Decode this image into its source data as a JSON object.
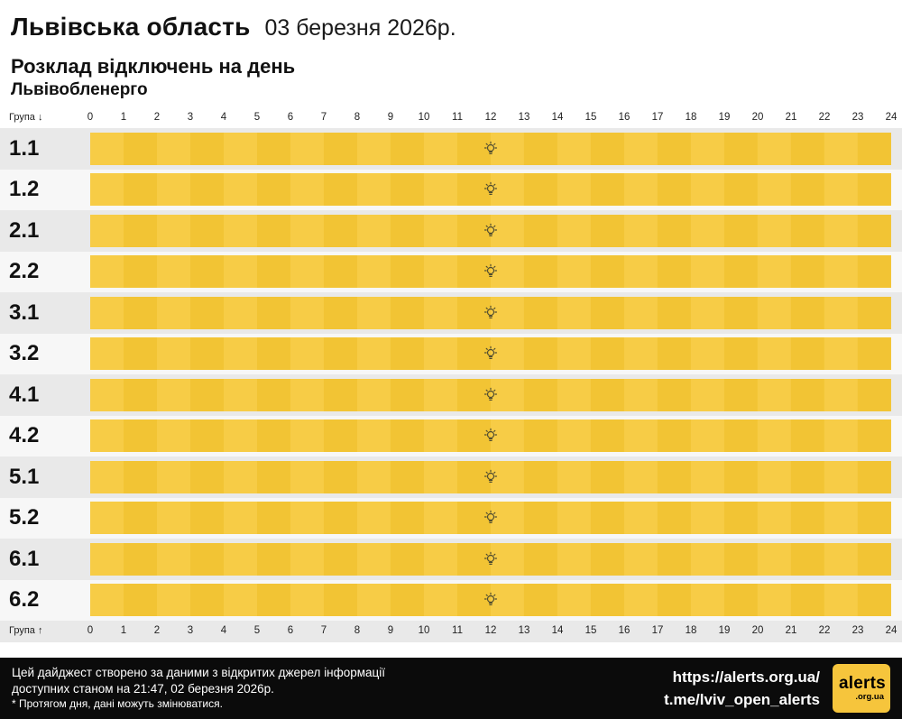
{
  "header": {
    "title": "Львівська область",
    "date": "03 березня 2026р.",
    "subtitle": "Розклад відключень на день",
    "provider": "Львівобленерго"
  },
  "axis": {
    "top_label": "Група ↓",
    "bottom_label": "Група ↑",
    "hours": [
      "0",
      "1",
      "2",
      "3",
      "4",
      "5",
      "6",
      "7",
      "8",
      "9",
      "10",
      "11",
      "12",
      "13",
      "14",
      "15",
      "16",
      "17",
      "18",
      "19",
      "20",
      "21",
      "22",
      "23",
      "24"
    ]
  },
  "chart_data": {
    "type": "heatmap",
    "title": "Розклад відключень на день — Львівобленерго, 03 березня 2026р.",
    "categories": [
      "1.1",
      "1.2",
      "2.1",
      "2.2",
      "3.1",
      "3.2",
      "4.1",
      "4.2",
      "5.1",
      "5.2",
      "6.1",
      "6.2"
    ],
    "x_range": [
      0,
      24
    ],
    "x_ticks": [
      0,
      1,
      2,
      3,
      4,
      5,
      6,
      7,
      8,
      9,
      10,
      11,
      12,
      13,
      14,
      15,
      16,
      17,
      18,
      19,
      20,
      21,
      22,
      23,
      24
    ],
    "series": [
      {
        "name": "1.1",
        "segments": [
          {
            "start": 0,
            "end": 24,
            "state": "power_on"
          }
        ]
      },
      {
        "name": "1.2",
        "segments": [
          {
            "start": 0,
            "end": 24,
            "state": "power_on"
          }
        ]
      },
      {
        "name": "2.1",
        "segments": [
          {
            "start": 0,
            "end": 24,
            "state": "power_on"
          }
        ]
      },
      {
        "name": "2.2",
        "segments": [
          {
            "start": 0,
            "end": 24,
            "state": "power_on"
          }
        ]
      },
      {
        "name": "3.1",
        "segments": [
          {
            "start": 0,
            "end": 24,
            "state": "power_on"
          }
        ]
      },
      {
        "name": "3.2",
        "segments": [
          {
            "start": 0,
            "end": 24,
            "state": "power_on"
          }
        ]
      },
      {
        "name": "4.1",
        "segments": [
          {
            "start": 0,
            "end": 24,
            "state": "power_on"
          }
        ]
      },
      {
        "name": "4.2",
        "segments": [
          {
            "start": 0,
            "end": 24,
            "state": "power_on"
          }
        ]
      },
      {
        "name": "5.1",
        "segments": [
          {
            "start": 0,
            "end": 24,
            "state": "power_on"
          }
        ]
      },
      {
        "name": "5.2",
        "segments": [
          {
            "start": 0,
            "end": 24,
            "state": "power_on"
          }
        ]
      },
      {
        "name": "6.1",
        "segments": [
          {
            "start": 0,
            "end": 24,
            "state": "power_on"
          }
        ]
      },
      {
        "name": "6.2",
        "segments": [
          {
            "start": 0,
            "end": 24,
            "state": "power_on"
          }
        ]
      }
    ],
    "marker": {
      "icon": "bulb-icon",
      "position_hour": 12,
      "meaning": "електропостачання без відключень"
    }
  },
  "colors": {
    "bar_primary": "#F7CC46",
    "bar_alt": "#F2C434",
    "row_odd_bg": "#E9E9E9",
    "row_even_bg": "#F7F7F7",
    "footer_bg": "#0B0B0B",
    "logo_bg": "#F6C53C"
  },
  "icons": {
    "row_marker": "bulb-icon"
  },
  "footer": {
    "line1": "Цей дайджест створено за даними з відкритих джерел інформації",
    "line2": "доступних станом на 21:47, 02 березня 2026р.",
    "line3": "* Протягом дня, дані можуть змінюватися.",
    "link1": "https://alerts.org.ua/",
    "link2": "t.me/lviv_open_alerts",
    "logo_text": "alerts",
    "logo_sub": ".org.ua"
  }
}
